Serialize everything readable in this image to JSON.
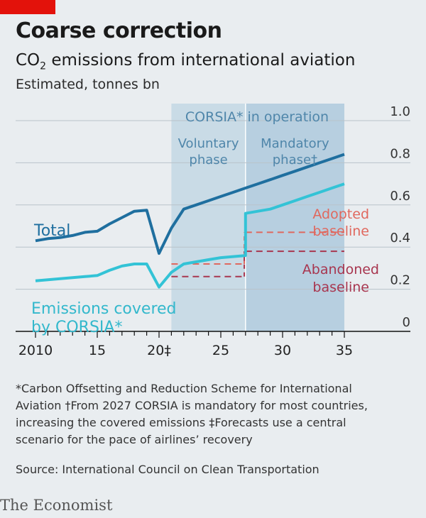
{
  "header": {
    "title": "Coarse correction",
    "subtitle_pre": "CO",
    "subtitle_sub": "2",
    "subtitle_post": " emissions from international aviation",
    "unit": "Estimated, tonnes bn"
  },
  "chart_data": {
    "type": "line",
    "xlim": [
      2010,
      2037
    ],
    "ylim": [
      0,
      1.0
    ],
    "y_ticks": [
      0,
      0.2,
      0.4,
      0.6,
      0.8,
      1.0
    ],
    "y_tick_labels": [
      "0",
      "0.2",
      "0.4",
      "0.6",
      "0.8",
      "1.0"
    ],
    "x_ticks": [
      2010,
      2015,
      2020,
      2025,
      2030,
      2035
    ],
    "x_tick_labels": [
      "2010",
      "15",
      "20‡",
      "25",
      "30",
      "35"
    ],
    "grid": true,
    "shaded_regions": [
      {
        "label_line1": "Voluntary",
        "label_line2": "phase",
        "x_start": 2021,
        "x_end": 2027
      },
      {
        "label_line1": "Mandatory",
        "label_line2": "phase†",
        "x_start": 2027,
        "x_end": 2035
      }
    ],
    "region_header": "CORSIA* in operation",
    "series": [
      {
        "name": "Total",
        "color": "#1f6f9f",
        "x": [
          2010,
          2011,
          2012,
          2013,
          2014,
          2015,
          2016,
          2017,
          2018,
          2019,
          2020,
          2021,
          2022,
          2023,
          2024,
          2025,
          2026,
          2027,
          2028,
          2029,
          2030,
          2031,
          2032,
          2033,
          2034,
          2035
        ],
        "y": [
          0.43,
          0.44,
          0.445,
          0.455,
          0.47,
          0.475,
          0.51,
          0.54,
          0.57,
          0.575,
          0.37,
          0.49,
          0.58,
          0.6,
          0.62,
          0.64,
          0.66,
          0.68,
          0.7,
          0.72,
          0.74,
          0.76,
          0.78,
          0.8,
          0.82,
          0.84
        ]
      },
      {
        "name": "Emissions covered by CORSIA*",
        "label_line1": "Emissions covered",
        "label_line2": "by CORSIA*",
        "color": "#33c3d6",
        "x": [
          2010,
          2011,
          2012,
          2013,
          2014,
          2015,
          2016,
          2017,
          2018,
          2019,
          2020,
          2021,
          2022,
          2023,
          2024,
          2025,
          2026,
          2027,
          2027,
          2028,
          2029,
          2030,
          2031,
          2032,
          2033,
          2034,
          2035
        ],
        "y": [
          0.24,
          0.245,
          0.25,
          0.255,
          0.26,
          0.265,
          0.29,
          0.31,
          0.32,
          0.32,
          0.21,
          0.28,
          0.32,
          0.33,
          0.34,
          0.35,
          0.355,
          0.36,
          0.56,
          0.57,
          0.58,
          0.6,
          0.62,
          0.64,
          0.66,
          0.68,
          0.7
        ]
      }
    ],
    "baselines": [
      {
        "name": "Adopted baseline",
        "label_line1": "Adopted",
        "label_line2": "baseline",
        "color": "#e0685e",
        "y": 0.47,
        "segments": [
          [
            2021,
            2026.9,
            0.32
          ],
          [
            2027,
            2035,
            0.47
          ]
        ]
      },
      {
        "name": "Abandoned baseline",
        "label_line1": "Abandoned",
        "label_line2": "baseline",
        "color": "#a8364f",
        "y": 0.38,
        "segments": [
          [
            2021,
            2026.9,
            0.26
          ],
          [
            2027,
            2035,
            0.38
          ]
        ]
      }
    ]
  },
  "footer": {
    "footnote_line1": "*Carbon Offsetting and Reduction Scheme for International",
    "footnote_line2": "Aviation   †From 2027 CORSIA is mandatory for most countries,",
    "footnote_line3": "increasing the covered emissions   ‡Forecasts use a central",
    "footnote_line4": "scenario for the pace of airlines’ recovery",
    "source": "Source: International Council on Clean Transportation",
    "brand": "The Economist"
  }
}
